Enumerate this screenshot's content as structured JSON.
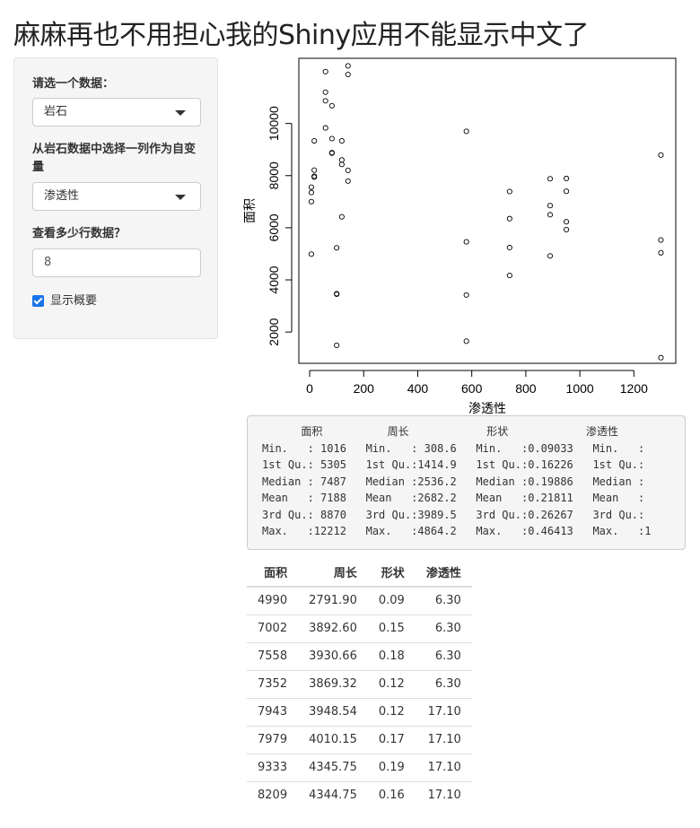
{
  "title": "麻麻再也不用担心我的Shiny应用不能显示中文了",
  "sidebar": {
    "dataset_label": "请选一个数据：",
    "dataset_value": "岩石",
    "column_label": "从岩石数据中选择一列作为自变量",
    "column_value": "渗透性",
    "rows_label": "查看多少行数据？",
    "rows_value": "8",
    "summary_checkbox_label": "显示概要",
    "summary_checked": true
  },
  "chart_data": {
    "type": "scatter",
    "xlabel": "渗透性",
    "ylabel": "面积",
    "xlim": [
      -40,
      1355
    ],
    "ylim": [
      800,
      12500
    ],
    "xticks": [
      0,
      200,
      400,
      600,
      800,
      1000,
      1200
    ],
    "yticks": [
      2000,
      4000,
      6000,
      8000,
      10000
    ],
    "points": [
      [
        6.3,
        4990
      ],
      [
        6.3,
        7002
      ],
      [
        6.3,
        7558
      ],
      [
        6.3,
        7352
      ],
      [
        17.1,
        7943
      ],
      [
        17.1,
        7979
      ],
      [
        17.1,
        9333
      ],
      [
        17.1,
        8209
      ],
      [
        58.6,
        10870
      ],
      [
        58.6,
        11200
      ],
      [
        58.6,
        11990
      ],
      [
        58.6,
        9830
      ],
      [
        82.4,
        8880
      ],
      [
        82.4,
        8860
      ],
      [
        82.4,
        9420
      ],
      [
        82.4,
        10680
      ],
      [
        100,
        3470
      ],
      [
        100,
        3450
      ],
      [
        100,
        5230
      ],
      [
        100,
        1490
      ],
      [
        119,
        9332
      ],
      [
        119,
        8600
      ],
      [
        119,
        8430
      ],
      [
        119,
        6420
      ],
      [
        142,
        11880
      ],
      [
        142,
        12210
      ],
      [
        142,
        8200
      ],
      [
        142,
        7790
      ],
      [
        580,
        1650
      ],
      [
        580,
        3420
      ],
      [
        580,
        5460
      ],
      [
        580,
        9700
      ],
      [
        740,
        4170
      ],
      [
        740,
        5240
      ],
      [
        740,
        6350
      ],
      [
        740,
        7390
      ],
      [
        890,
        6850
      ],
      [
        890,
        4920
      ],
      [
        890,
        6500
      ],
      [
        890,
        7880
      ],
      [
        950,
        6230
      ],
      [
        950,
        5930
      ],
      [
        950,
        7400
      ],
      [
        950,
        7890
      ],
      [
        1300,
        1016
      ],
      [
        1300,
        5040
      ],
      [
        1300,
        5530
      ],
      [
        1300,
        8790
      ]
    ]
  },
  "summary": {
    "lines": [
      "      面积          周长            形状            渗透性",
      "Min.   : 1016   Min.   : 308.6   Min.   :0.09033   Min.   :",
      "1st Qu.: 5305   1st Qu.:1414.9   1st Qu.:0.16226   1st Qu.:",
      "Median : 7487   Median :2536.2   Median :0.19886   Median :",
      "Mean   : 7188   Mean   :2682.2   Mean   :0.21811   Mean   :",
      "3rd Qu.: 8870   3rd Qu.:3989.5   3rd Qu.:0.26267   3rd Qu.:",
      "Max.   :12212   Max.   :4864.2   Max.   :0.46413   Max.   :1"
    ]
  },
  "table": {
    "headers": [
      "面积",
      "周长",
      "形状",
      "渗透性"
    ],
    "rows": [
      [
        "4990",
        "2791.90",
        "0.09",
        "6.30"
      ],
      [
        "7002",
        "3892.60",
        "0.15",
        "6.30"
      ],
      [
        "7558",
        "3930.66",
        "0.18",
        "6.30"
      ],
      [
        "7352",
        "3869.32",
        "0.12",
        "6.30"
      ],
      [
        "7943",
        "3948.54",
        "0.12",
        "17.10"
      ],
      [
        "7979",
        "4010.15",
        "0.17",
        "17.10"
      ],
      [
        "9333",
        "4345.75",
        "0.19",
        "17.10"
      ],
      [
        "8209",
        "4344.75",
        "0.16",
        "17.10"
      ]
    ]
  }
}
